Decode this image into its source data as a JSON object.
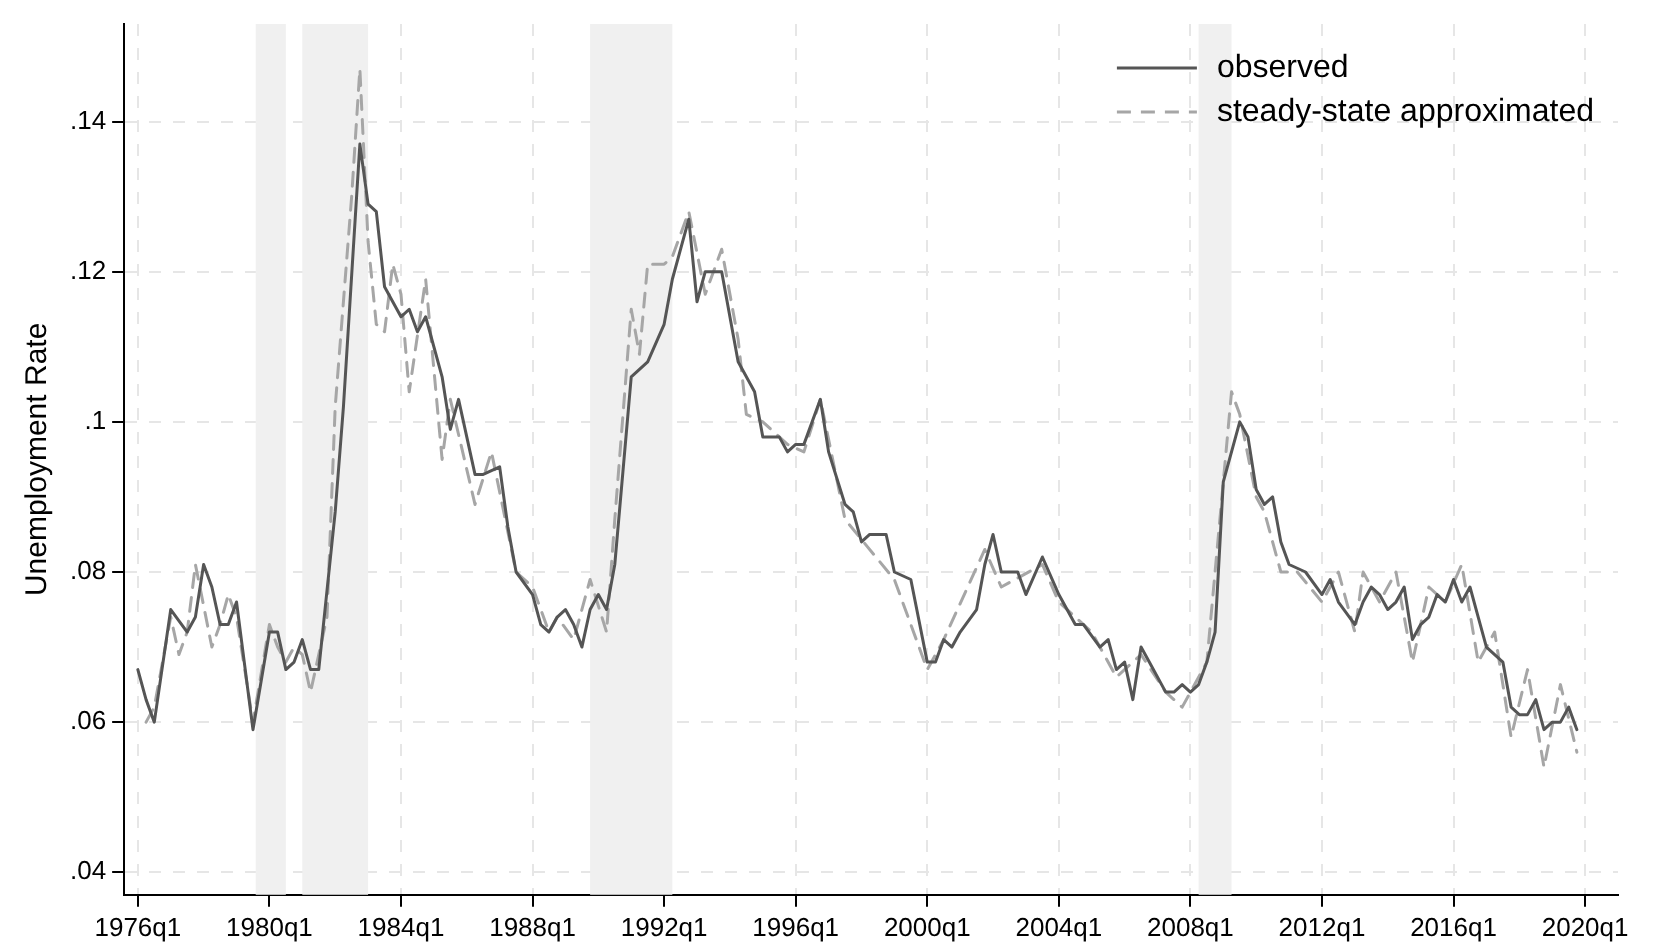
{
  "chart_data": {
    "type": "line",
    "ylabel": "Unemployment Rate",
    "xlim": [
      "1975-08",
      "2021-01"
    ],
    "ylim": [
      0.037,
      0.153
    ],
    "xticks": [
      {
        "value": "1976-01",
        "label": "1976q1"
      },
      {
        "value": "1980-01",
        "label": "1980q1"
      },
      {
        "value": "1984-01",
        "label": "1984q1"
      },
      {
        "value": "1988-01",
        "label": "1988q1"
      },
      {
        "value": "1992-01",
        "label": "1992q1"
      },
      {
        "value": "1996-01",
        "label": "1996q1"
      },
      {
        "value": "2000-01",
        "label": "2000q1"
      },
      {
        "value": "2004-01",
        "label": "2004q1"
      },
      {
        "value": "2008-01",
        "label": "2008q1"
      },
      {
        "value": "2012-01",
        "label": "2012q1"
      },
      {
        "value": "2016-01",
        "label": "2016q1"
      },
      {
        "value": "2020-01",
        "label": "2020q1"
      }
    ],
    "yticks": [
      {
        "value": 0.04,
        "label": ".04"
      },
      {
        "value": 0.06,
        "label": ".06"
      },
      {
        "value": 0.08,
        "label": ".08"
      },
      {
        "value": 0.1,
        "label": ".1"
      },
      {
        "value": 0.12,
        "label": ".12"
      },
      {
        "value": 0.14,
        "label": ".14"
      }
    ],
    "grid": true,
    "legend": "top right",
    "marker": "none",
    "bands": [
      {
        "axis": "x",
        "from": "1979-08",
        "to": "1980-07",
        "label": null,
        "color": "#f0f0f0"
      },
      {
        "axis": "x",
        "from": "1981-01",
        "to": "1983-01",
        "label": null,
        "color": "#f0f0f0"
      },
      {
        "axis": "x",
        "from": "1989-10",
        "to": "1992-04",
        "label": null,
        "color": "#f0f0f0"
      },
      {
        "axis": "x",
        "from": "2008-04",
        "to": "2009-04",
        "label": null,
        "color": "#f0f0f0"
      }
    ],
    "series": [
      {
        "name": "observed",
        "color": "#555555",
        "line_style": "solid",
        "x": [
          "1976-01",
          "1976-04",
          "1976-07",
          "1977-01",
          "1977-07",
          "1977-10",
          "1978-01",
          "1978-04",
          "1978-07",
          "1978-10",
          "1979-01",
          "1979-07",
          "1980-01",
          "1980-04",
          "1980-07",
          "1980-10",
          "1981-01",
          "1981-04",
          "1981-07",
          "1982-01",
          "1982-04",
          "1982-10",
          "1983-01",
          "1983-04",
          "1983-07",
          "1984-01",
          "1984-04",
          "1984-07",
          "1984-10",
          "1985-04",
          "1985-07",
          "1985-10",
          "1986-04",
          "1986-07",
          "1987-01",
          "1987-04",
          "1987-07",
          "1988-01",
          "1988-04",
          "1988-07",
          "1988-10",
          "1989-01",
          "1989-04",
          "1989-07",
          "1989-10",
          "1990-01",
          "1990-04",
          "1990-07",
          "1991-01",
          "1991-07",
          "1992-01",
          "1992-04",
          "1992-10",
          "1993-01",
          "1993-04",
          "1993-10",
          "1994-04",
          "1994-10",
          "1995-01",
          "1995-07",
          "1995-10",
          "1996-01",
          "1996-04",
          "1996-10",
          "1997-01",
          "1997-07",
          "1997-10",
          "1998-01",
          "1998-04",
          "1998-10",
          "1999-01",
          "1999-07",
          "2000-01",
          "2000-04",
          "2000-07",
          "2000-10",
          "2001-01",
          "2001-07",
          "2001-10",
          "2002-01",
          "2002-04",
          "2002-10",
          "2003-01",
          "2003-07",
          "2004-01",
          "2004-04",
          "2004-07",
          "2004-10",
          "2005-04",
          "2005-07",
          "2005-10",
          "2006-01",
          "2006-04",
          "2006-07",
          "2006-10",
          "2007-04",
          "2007-07",
          "2007-10",
          "2008-01",
          "2008-04",
          "2008-07",
          "2008-10",
          "2009-01",
          "2009-07",
          "2009-10",
          "2010-01",
          "2010-04",
          "2010-07",
          "2010-10",
          "2011-01",
          "2011-07",
          "2012-01",
          "2012-04",
          "2012-07",
          "2013-01",
          "2013-04",
          "2013-07",
          "2013-10",
          "2014-01",
          "2014-04",
          "2014-07",
          "2014-10",
          "2015-01",
          "2015-04",
          "2015-07",
          "2015-10",
          "2016-01",
          "2016-04",
          "2016-07",
          "2016-10",
          "2017-01",
          "2017-07",
          "2017-10",
          "2018-01",
          "2018-04",
          "2018-07",
          "2018-10",
          "2019-01",
          "2019-04",
          "2019-07",
          "2019-10"
        ],
        "values": [
          0.067,
          0.063,
          0.06,
          0.075,
          0.072,
          0.074,
          0.081,
          0.078,
          0.073,
          0.073,
          0.076,
          0.059,
          0.072,
          0.072,
          0.067,
          0.068,
          0.071,
          0.067,
          0.067,
          0.088,
          0.102,
          0.137,
          0.129,
          0.128,
          0.118,
          0.114,
          0.115,
          0.112,
          0.114,
          0.106,
          0.099,
          0.103,
          0.093,
          0.093,
          0.094,
          0.086,
          0.08,
          0.077,
          0.073,
          0.072,
          0.074,
          0.075,
          0.073,
          0.07,
          0.075,
          0.077,
          0.075,
          0.081,
          0.106,
          0.108,
          0.113,
          0.119,
          0.127,
          0.116,
          0.12,
          0.12,
          0.108,
          0.104,
          0.098,
          0.098,
          0.096,
          0.097,
          0.097,
          0.103,
          0.096,
          0.089,
          0.088,
          0.084,
          0.085,
          0.085,
          0.08,
          0.079,
          0.068,
          0.068,
          0.071,
          0.07,
          0.072,
          0.075,
          0.081,
          0.085,
          0.08,
          0.08,
          0.077,
          0.082,
          0.077,
          0.075,
          0.073,
          0.073,
          0.07,
          0.071,
          0.067,
          0.068,
          0.063,
          0.07,
          0.068,
          0.064,
          0.064,
          0.065,
          0.064,
          0.065,
          0.068,
          0.072,
          0.092,
          0.1,
          0.098,
          0.091,
          0.089,
          0.09,
          0.084,
          0.081,
          0.08,
          0.077,
          0.079,
          0.076,
          0.073,
          0.076,
          0.078,
          0.077,
          0.075,
          0.076,
          0.078,
          0.071,
          0.073,
          0.074,
          0.077,
          0.076,
          0.079,
          0.076,
          0.078,
          0.074,
          0.07,
          0.068,
          0.062,
          0.061,
          0.061,
          0.063,
          0.059,
          0.06,
          0.06,
          0.062,
          0.059
        ]
      },
      {
        "name": "steady-state approximated",
        "color": "#a6a6a6",
        "line_style": "dashed",
        "x": [
          "1976-04",
          "1976-07",
          "1977-01",
          "1977-04",
          "1977-07",
          "1977-10",
          "1978-04",
          "1978-07",
          "1978-10",
          "1979-01",
          "1979-07",
          "1980-01",
          "1980-04",
          "1980-07",
          "1980-10",
          "1981-01",
          "1981-04",
          "1981-10",
          "1982-01",
          "1982-07",
          "1982-10",
          "1983-01",
          "1983-04",
          "1983-07",
          "1983-10",
          "1984-01",
          "1984-04",
          "1984-10",
          "1985-04",
          "1985-07",
          "1986-04",
          "1986-10",
          "1987-07",
          "1988-01",
          "1988-07",
          "1988-10",
          "1989-04",
          "1989-10",
          "1990-04",
          "1990-07",
          "1991-01",
          "1991-04",
          "1991-07",
          "1992-01",
          "1992-04",
          "1992-10",
          "1993-04",
          "1993-10",
          "1994-04",
          "1994-07",
          "1995-01",
          "1995-10",
          "1996-04",
          "1996-10",
          "1997-07",
          "1999-01",
          "2000-01",
          "2000-07",
          "2001-10",
          "2002-04",
          "2003-07",
          "2004-01",
          "2004-07",
          "2005-01",
          "2005-10",
          "2006-07",
          "2007-04",
          "2007-10",
          "2008-07",
          "2008-10",
          "2009-04",
          "2009-07",
          "2010-01",
          "2010-04",
          "2010-10",
          "2011-04",
          "2012-01",
          "2012-07",
          "2013-01",
          "2013-04",
          "2013-10",
          "2014-04",
          "2014-10",
          "2015-04",
          "2015-10",
          "2016-04",
          "2016-10",
          "2017-04",
          "2017-10",
          "2018-04",
          "2018-10",
          "2019-04",
          "2019-10"
        ],
        "values": [
          0.06,
          0.062,
          0.074,
          0.069,
          0.072,
          0.081,
          0.07,
          0.073,
          0.077,
          0.074,
          0.06,
          0.073,
          0.07,
          0.068,
          0.07,
          0.069,
          0.064,
          0.074,
          0.102,
          0.13,
          0.147,
          0.124,
          0.113,
          0.112,
          0.121,
          0.117,
          0.104,
          0.119,
          0.095,
          0.103,
          0.089,
          0.096,
          0.08,
          0.078,
          0.072,
          0.074,
          0.071,
          0.079,
          0.072,
          0.087,
          0.115,
          0.109,
          0.121,
          0.121,
          0.122,
          0.128,
          0.117,
          0.123,
          0.111,
          0.101,
          0.1,
          0.097,
          0.096,
          0.103,
          0.087,
          0.079,
          0.067,
          0.071,
          0.083,
          0.078,
          0.081,
          0.076,
          0.074,
          0.072,
          0.066,
          0.069,
          0.064,
          0.062,
          0.068,
          0.08,
          0.104,
          0.101,
          0.09,
          0.088,
          0.08,
          0.08,
          0.076,
          0.08,
          0.072,
          0.08,
          0.076,
          0.08,
          0.068,
          0.078,
          0.076,
          0.081,
          0.068,
          0.072,
          0.058,
          0.067,
          0.054,
          0.065,
          0.056
        ]
      }
    ]
  }
}
